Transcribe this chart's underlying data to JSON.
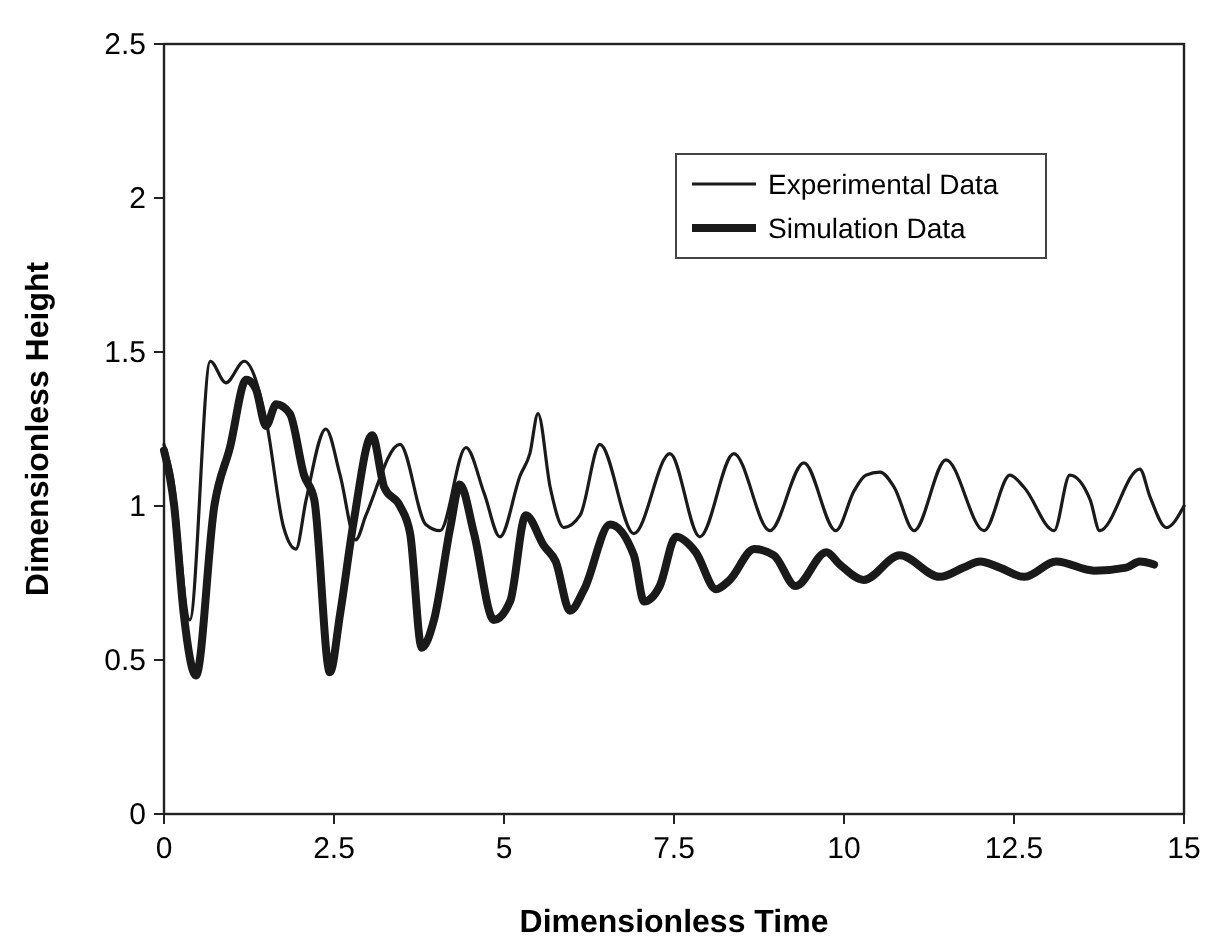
{
  "chart_data": {
    "type": "line",
    "xlabel": "Dimensionless Time",
    "ylabel": "Dimensionless Height",
    "xlim": [
      0,
      15
    ],
    "ylim": [
      0,
      2.5
    ],
    "xticks": [
      0,
      2.5,
      5,
      7.5,
      10,
      12.5,
      15
    ],
    "yticks": [
      0,
      0.5,
      1,
      1.5,
      2,
      2.5
    ],
    "grid": false,
    "legend": "top right",
    "marker": "none",
    "line_style": "solid",
    "series": [
      {
        "name": "Experimental Data",
        "color": "#1a1a1a",
        "x": [
          0,
          0.12,
          0.38,
          0.68,
          0.91,
          1.18,
          1.5,
          1.76,
          1.94,
          2.09,
          2.38,
          2.59,
          2.82,
          2.97,
          3.47,
          3.85,
          4.06,
          4.44,
          4.71,
          4.94,
          5.24,
          5.38,
          5.5,
          5.68,
          5.88,
          6.12,
          6.41,
          6.91,
          7.44,
          7.88,
          8.38,
          8.91,
          9.41,
          9.88,
          10.15,
          10.32,
          10.53,
          10.74,
          11.03,
          11.5,
          12.06,
          12.44,
          12.65,
          13.09,
          13.32,
          13.62,
          13.76,
          14.35,
          14.5,
          14.74,
          15
        ],
        "values": [
          1.2,
          1.1,
          0.63,
          1.47,
          1.4,
          1.47,
          1.28,
          0.93,
          0.86,
          1.02,
          1.25,
          1.1,
          0.89,
          0.97,
          1.2,
          0.94,
          0.92,
          1.19,
          1.04,
          0.9,
          1.1,
          1.17,
          1.3,
          1.06,
          0.93,
          0.97,
          1.2,
          0.91,
          1.17,
          0.9,
          1.17,
          0.92,
          1.14,
          0.92,
          1.05,
          1.1,
          1.11,
          1.06,
          0.92,
          1.15,
          0.92,
          1.1,
          1.06,
          0.92,
          1.1,
          1.02,
          0.92,
          1.12,
          1.03,
          0.93,
          1.0
        ]
      },
      {
        "name": "Simulation Data",
        "color": "#1a1a1a",
        "x": [
          0,
          0.15,
          0.29,
          0.47,
          0.74,
          0.97,
          1.21,
          1.35,
          1.5,
          1.65,
          1.85,
          2.06,
          2.21,
          2.44,
          2.59,
          2.79,
          3.06,
          3.24,
          3.47,
          3.62,
          3.79,
          3.97,
          4.21,
          4.35,
          4.56,
          4.85,
          5.09,
          5.32,
          5.59,
          5.76,
          5.97,
          6.18,
          6.56,
          6.91,
          7.06,
          7.29,
          7.53,
          7.82,
          8.12,
          8.32,
          8.68,
          8.97,
          9.29,
          9.74,
          9.94,
          10.29,
          10.82,
          11.41,
          11.76,
          12.0,
          12.29,
          12.65,
          13.12,
          13.68,
          14.15,
          14.35,
          14.56
        ],
        "values": [
          1.18,
          1.0,
          0.65,
          0.45,
          1.0,
          1.19,
          1.41,
          1.38,
          1.26,
          1.33,
          1.3,
          1.1,
          1.02,
          0.46,
          0.65,
          0.95,
          1.23,
          1.06,
          1.0,
          0.91,
          0.54,
          0.63,
          0.93,
          1.07,
          0.91,
          0.63,
          0.69,
          0.97,
          0.87,
          0.82,
          0.66,
          0.73,
          0.94,
          0.84,
          0.69,
          0.74,
          0.9,
          0.85,
          0.73,
          0.76,
          0.86,
          0.84,
          0.74,
          0.85,
          0.81,
          0.76,
          0.84,
          0.77,
          0.8,
          0.82,
          0.8,
          0.77,
          0.82,
          0.79,
          0.8,
          0.82,
          0.81
        ]
      }
    ]
  }
}
